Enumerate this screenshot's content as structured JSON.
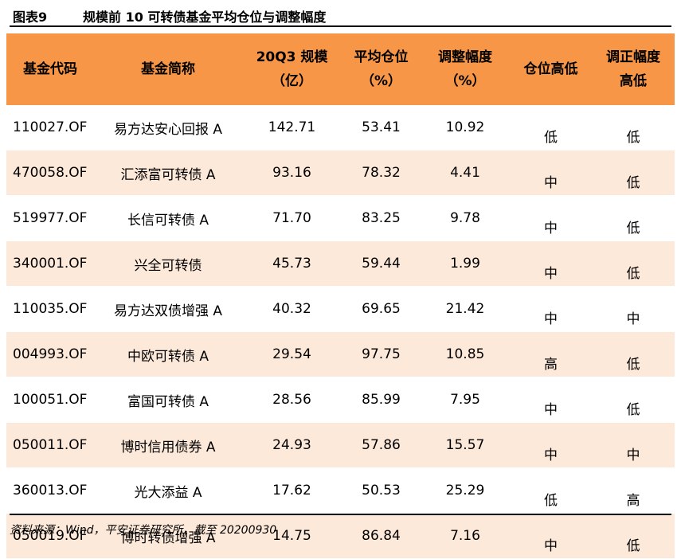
{
  "figure": {
    "number": "图表9",
    "title": "规模前 10 可转债基金平均仓位与调整幅度"
  },
  "table": {
    "headers": [
      [
        "基金代码"
      ],
      [
        "基金简称"
      ],
      [
        "20Q3 规模",
        "（亿）"
      ],
      [
        "平均仓位",
        "（%）"
      ],
      [
        "调整幅度",
        "（%）"
      ],
      [
        "仓位高低"
      ],
      [
        "调正幅度",
        "高低"
      ]
    ],
    "rows": [
      [
        "110027.OF",
        "易方达安心回报 A",
        "142.71",
        "53.41",
        "10.92",
        "低",
        "低"
      ],
      [
        "470058.OF",
        "汇添富可转债 A",
        "93.16",
        "78.32",
        "4.41",
        "中",
        "低"
      ],
      [
        "519977.OF",
        "长信可转债 A",
        "71.70",
        "83.25",
        "9.78",
        "中",
        "低"
      ],
      [
        "340001.OF",
        "兴全可转债",
        "45.73",
        "59.44",
        "1.99",
        "中",
        "低"
      ],
      [
        "110035.OF",
        "易方达双债增强 A",
        "40.32",
        "69.65",
        "21.42",
        "中",
        "中"
      ],
      [
        "004993.OF",
        "中欧可转债 A",
        "29.54",
        "97.75",
        "10.85",
        "高",
        "低"
      ],
      [
        "100051.OF",
        "富国可转债 A",
        "28.56",
        "85.99",
        "7.95",
        "中",
        "低"
      ],
      [
        "050011.OF",
        "博时信用债券 A",
        "24.93",
        "57.86",
        "15.57",
        "中",
        "中"
      ],
      [
        "360013.OF",
        "光大添益 A",
        "17.62",
        "50.53",
        "25.29",
        "低",
        "高"
      ],
      [
        "050019.OF",
        "博时转债增强 A",
        "14.75",
        "86.84",
        "7.16",
        "中",
        "低"
      ]
    ]
  },
  "source": "资料来源：Wind，平安证券研究所，截至 20200930",
  "colors": {
    "header_bg": "#f79646",
    "stripe_bg": "#fde9d9"
  }
}
